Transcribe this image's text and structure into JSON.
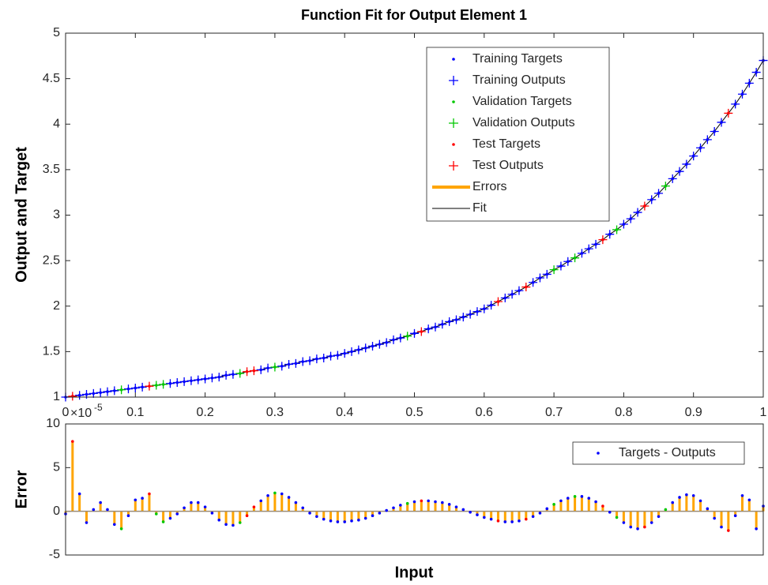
{
  "chart_data": [
    {
      "type": "fit",
      "title": "Function Fit for Output Element 1",
      "ylabel": "Output and Target",
      "xlim": [
        0,
        1
      ],
      "xticks": [
        0,
        0.1,
        0.2,
        0.3,
        0.4,
        0.5,
        0.6,
        0.7,
        0.8,
        0.9,
        1
      ],
      "ylim": [
        1,
        5
      ],
      "yticks": [
        1,
        1.5,
        2,
        2.5,
        3,
        3.5,
        4,
        4.5,
        5
      ],
      "legend": "upper-right",
      "series": [
        {
          "name": "Training Targets",
          "color": "#0000ff",
          "marker": ".",
          "x": [
            0,
            0.02,
            0.03,
            0.04,
            0.05,
            0.06,
            0.07,
            0.09,
            0.1,
            0.11,
            0.15,
            0.16,
            0.17,
            0.18,
            0.19,
            0.2,
            0.21,
            0.22,
            0.23,
            0.24,
            0.28,
            0.29,
            0.31,
            0.32,
            0.33,
            0.34,
            0.35,
            0.36,
            0.37,
            0.38,
            0.39,
            0.4,
            0.41,
            0.42,
            0.43,
            0.44,
            0.45,
            0.46,
            0.47,
            0.48,
            0.5,
            0.52,
            0.53,
            0.54,
            0.55,
            0.56,
            0.57,
            0.58,
            0.59,
            0.6,
            0.61,
            0.63,
            0.64,
            0.65,
            0.67,
            0.68,
            0.69,
            0.71,
            0.72,
            0.74,
            0.75,
            0.76,
            0.78,
            0.8,
            0.81,
            0.82,
            0.84,
            0.85,
            0.87,
            0.88,
            0.89,
            0.9,
            0.91,
            0.92,
            0.93,
            0.94,
            0.96,
            0.97,
            0.98,
            0.99,
            1
          ],
          "values": [
            1,
            1.02,
            1.03,
            1.04,
            1.05,
            1.06,
            1.07,
            1.09,
            1.1,
            1.11,
            1.15,
            1.16,
            1.17,
            1.18,
            1.19,
            1.2,
            1.21,
            1.22,
            1.24,
            1.25,
            1.3,
            1.32,
            1.34,
            1.36,
            1.37,
            1.39,
            1.4,
            1.42,
            1.43,
            1.45,
            1.46,
            1.48,
            1.5,
            1.52,
            1.54,
            1.56,
            1.58,
            1.6,
            1.63,
            1.65,
            1.7,
            1.75,
            1.77,
            1.8,
            1.83,
            1.85,
            1.88,
            1.91,
            1.94,
            1.97,
            2.01,
            2.09,
            2.13,
            2.17,
            2.26,
            2.31,
            2.35,
            2.44,
            2.49,
            2.58,
            2.63,
            2.68,
            2.79,
            2.9,
            2.96,
            3.03,
            3.17,
            3.24,
            3.4,
            3.48,
            3.56,
            3.65,
            3.74,
            3.83,
            3.92,
            4.02,
            4.22,
            4.33,
            4.45,
            4.57,
            4.7
          ]
        },
        {
          "name": "Training Outputs",
          "color": "#0000ff",
          "marker": "+",
          "x": [
            0,
            0.02,
            0.03,
            0.04,
            0.05,
            0.06,
            0.07,
            0.09,
            0.1,
            0.11,
            0.15,
            0.16,
            0.17,
            0.18,
            0.19,
            0.2,
            0.21,
            0.22,
            0.23,
            0.24,
            0.28,
            0.29,
            0.31,
            0.32,
            0.33,
            0.34,
            0.35,
            0.36,
            0.37,
            0.38,
            0.39,
            0.4,
            0.41,
            0.42,
            0.43,
            0.44,
            0.45,
            0.46,
            0.47,
            0.48,
            0.5,
            0.52,
            0.53,
            0.54,
            0.55,
            0.56,
            0.57,
            0.58,
            0.59,
            0.6,
            0.61,
            0.63,
            0.64,
            0.65,
            0.67,
            0.68,
            0.69,
            0.71,
            0.72,
            0.74,
            0.75,
            0.76,
            0.78,
            0.8,
            0.81,
            0.82,
            0.84,
            0.85,
            0.87,
            0.88,
            0.89,
            0.9,
            0.91,
            0.92,
            0.93,
            0.94,
            0.96,
            0.97,
            0.98,
            0.99,
            1
          ],
          "values": [
            1,
            1.02,
            1.03,
            1.04,
            1.05,
            1.06,
            1.07,
            1.09,
            1.1,
            1.11,
            1.15,
            1.16,
            1.17,
            1.18,
            1.19,
            1.2,
            1.21,
            1.22,
            1.24,
            1.25,
            1.3,
            1.32,
            1.34,
            1.36,
            1.37,
            1.39,
            1.4,
            1.42,
            1.43,
            1.45,
            1.46,
            1.48,
            1.5,
            1.52,
            1.54,
            1.56,
            1.58,
            1.6,
            1.63,
            1.65,
            1.7,
            1.75,
            1.77,
            1.8,
            1.83,
            1.85,
            1.88,
            1.91,
            1.94,
            1.97,
            2.01,
            2.09,
            2.13,
            2.17,
            2.26,
            2.31,
            2.35,
            2.44,
            2.49,
            2.58,
            2.63,
            2.68,
            2.79,
            2.9,
            2.96,
            3.03,
            3.17,
            3.24,
            3.4,
            3.48,
            3.56,
            3.65,
            3.74,
            3.83,
            3.92,
            4.02,
            4.22,
            4.33,
            4.45,
            4.57,
            4.7
          ]
        },
        {
          "name": "Validation Targets",
          "color": "#00c800",
          "marker": ".",
          "x": [
            0.08,
            0.13,
            0.14,
            0.25,
            0.3,
            0.49,
            0.7,
            0.73,
            0.79,
            0.86
          ],
          "values": [
            1.08,
            1.13,
            1.14,
            1.26,
            1.33,
            1.67,
            2.4,
            2.53,
            2.84,
            3.32
          ]
        },
        {
          "name": "Validation Outputs",
          "color": "#00c800",
          "marker": "+",
          "x": [
            0.08,
            0.13,
            0.14,
            0.25,
            0.3,
            0.49,
            0.7,
            0.73,
            0.79,
            0.86
          ],
          "values": [
            1.08,
            1.13,
            1.14,
            1.26,
            1.33,
            1.67,
            2.4,
            2.53,
            2.84,
            3.32
          ]
        },
        {
          "name": "Test Targets",
          "color": "#ff0000",
          "marker": ".",
          "x": [
            0.01,
            0.12,
            0.26,
            0.27,
            0.51,
            0.62,
            0.66,
            0.77,
            0.83,
            0.95
          ],
          "values": [
            1.01,
            1.12,
            1.28,
            1.29,
            1.72,
            2.05,
            2.21,
            2.73,
            3.1,
            4.12
          ]
        },
        {
          "name": "Test Outputs",
          "color": "#ff0000",
          "marker": "+",
          "x": [
            0.01,
            0.12,
            0.26,
            0.27,
            0.51,
            0.62,
            0.66,
            0.77,
            0.83,
            0.95
          ],
          "values": [
            1.01,
            1.12,
            1.28,
            1.29,
            1.72,
            2.05,
            2.21,
            2.73,
            3.1,
            4.12
          ]
        },
        {
          "name": "Errors",
          "color": "#ffa500",
          "marker": "-",
          "line_width": 4
        },
        {
          "name": "Fit",
          "color": "#000000",
          "marker": "-",
          "line_width": 1,
          "x": [
            0,
            0.01,
            0.02,
            0.03,
            0.04,
            0.05,
            0.06,
            0.07,
            0.08,
            0.09,
            0.1,
            0.11,
            0.12,
            0.13,
            0.14,
            0.15,
            0.16,
            0.17,
            0.18,
            0.19,
            0.2,
            0.21,
            0.22,
            0.23,
            0.24,
            0.25,
            0.26,
            0.27,
            0.28,
            0.29,
            0.3,
            0.31,
            0.32,
            0.33,
            0.34,
            0.35,
            0.36,
            0.37,
            0.38,
            0.39,
            0.4,
            0.41,
            0.42,
            0.43,
            0.44,
            0.45,
            0.46,
            0.47,
            0.48,
            0.49,
            0.5,
            0.51,
            0.52,
            0.53,
            0.54,
            0.55,
            0.56,
            0.57,
            0.58,
            0.59,
            0.6,
            0.61,
            0.62,
            0.63,
            0.64,
            0.65,
            0.66,
            0.67,
            0.68,
            0.69,
            0.7,
            0.71,
            0.72,
            0.73,
            0.74,
            0.75,
            0.76,
            0.77,
            0.78,
            0.79,
            0.8,
            0.81,
            0.82,
            0.83,
            0.84,
            0.85,
            0.86,
            0.87,
            0.88,
            0.89,
            0.9,
            0.91,
            0.92,
            0.93,
            0.94,
            0.95,
            0.96,
            0.97,
            0.98,
            0.99,
            1
          ],
          "values": [
            1,
            1.01,
            1.02,
            1.03,
            1.04,
            1.05,
            1.06,
            1.07,
            1.08,
            1.09,
            1.1,
            1.11,
            1.12,
            1.13,
            1.14,
            1.15,
            1.16,
            1.17,
            1.18,
            1.19,
            1.2,
            1.21,
            1.22,
            1.24,
            1.25,
            1.26,
            1.28,
            1.29,
            1.3,
            1.32,
            1.33,
            1.34,
            1.36,
            1.37,
            1.39,
            1.4,
            1.42,
            1.43,
            1.45,
            1.46,
            1.48,
            1.5,
            1.52,
            1.54,
            1.56,
            1.58,
            1.6,
            1.63,
            1.65,
            1.67,
            1.7,
            1.72,
            1.75,
            1.77,
            1.8,
            1.83,
            1.85,
            1.88,
            1.91,
            1.94,
            1.97,
            2.01,
            2.05,
            2.09,
            2.13,
            2.17,
            2.21,
            2.26,
            2.31,
            2.35,
            2.4,
            2.44,
            2.49,
            2.53,
            2.58,
            2.63,
            2.68,
            2.73,
            2.79,
            2.84,
            2.9,
            2.96,
            3.03,
            3.1,
            3.17,
            3.24,
            3.32,
            3.4,
            3.48,
            3.56,
            3.65,
            3.74,
            3.83,
            3.92,
            4.02,
            4.12,
            4.22,
            4.33,
            4.45,
            4.57,
            4.7
          ]
        }
      ]
    },
    {
      "type": "error",
      "ylabel": "Error",
      "xlabel": "Input",
      "y_multiplier": "×10",
      "y_exponent": "-5",
      "xlim": [
        0,
        1
      ],
      "ylim": [
        -5,
        10
      ],
      "yticks": [
        -5,
        0,
        5,
        10
      ],
      "legend": "upper-right",
      "series": [
        {
          "name": "Targets - Outputs",
          "color": "#0000ff",
          "stem_color": "#ffa500",
          "x": [
            0,
            0.01,
            0.02,
            0.03,
            0.04,
            0.05,
            0.06,
            0.07,
            0.08,
            0.09,
            0.1,
            0.11,
            0.12,
            0.13,
            0.14,
            0.15,
            0.16,
            0.17,
            0.18,
            0.19,
            0.2,
            0.21,
            0.22,
            0.23,
            0.24,
            0.25,
            0.26,
            0.27,
            0.28,
            0.29,
            0.3,
            0.31,
            0.32,
            0.33,
            0.34,
            0.35,
            0.36,
            0.37,
            0.38,
            0.39,
            0.4,
            0.41,
            0.42,
            0.43,
            0.44,
            0.45,
            0.46,
            0.47,
            0.48,
            0.49,
            0.5,
            0.51,
            0.52,
            0.53,
            0.54,
            0.55,
            0.56,
            0.57,
            0.58,
            0.59,
            0.6,
            0.61,
            0.62,
            0.63,
            0.64,
            0.65,
            0.66,
            0.67,
            0.68,
            0.69,
            0.7,
            0.71,
            0.72,
            0.73,
            0.74,
            0.75,
            0.76,
            0.77,
            0.78,
            0.79,
            0.8,
            0.81,
            0.82,
            0.83,
            0.84,
            0.85,
            0.86,
            0.87,
            0.88,
            0.89,
            0.9,
            0.91,
            0.92,
            0.93,
            0.94,
            0.95,
            0.96,
            0.97,
            0.98,
            0.99,
            1
          ],
          "values": [
            -0.3,
            8,
            2,
            -1.3,
            0.2,
            1,
            0.2,
            -1.5,
            -2,
            -0.5,
            1.3,
            1.5,
            2,
            -0.3,
            -1.2,
            -0.8,
            -0.3,
            0.4,
            1,
            1,
            0.5,
            -0.2,
            -1,
            -1.5,
            -1.6,
            -1.3,
            -0.5,
            0.5,
            1.2,
            1.8,
            2.1,
            2,
            1.6,
            1,
            0.4,
            -0.2,
            -0.6,
            -0.9,
            -1.1,
            -1.2,
            -1.2,
            -1.1,
            -1,
            -0.8,
            -0.5,
            -0.2,
            0.1,
            0.4,
            0.7,
            0.9,
            1.1,
            1.2,
            1.2,
            1.1,
            1,
            0.8,
            0.5,
            0.2,
            -0.1,
            -0.4,
            -0.7,
            -0.9,
            -1.1,
            -1.2,
            -1.2,
            -1.1,
            -0.9,
            -0.6,
            -0.2,
            0.3,
            0.8,
            1.2,
            1.5,
            1.7,
            1.7,
            1.5,
            1.1,
            0.6,
            -0.1,
            -0.7,
            -1.3,
            -1.8,
            -2,
            -1.8,
            -1.3,
            -0.6,
            0.2,
            1,
            1.6,
            1.9,
            1.8,
            1.2,
            0.3,
            -0.8,
            -1.8,
            -2.2,
            -0.5,
            1.8,
            1.3,
            -2,
            0.6
          ]
        }
      ]
    }
  ]
}
